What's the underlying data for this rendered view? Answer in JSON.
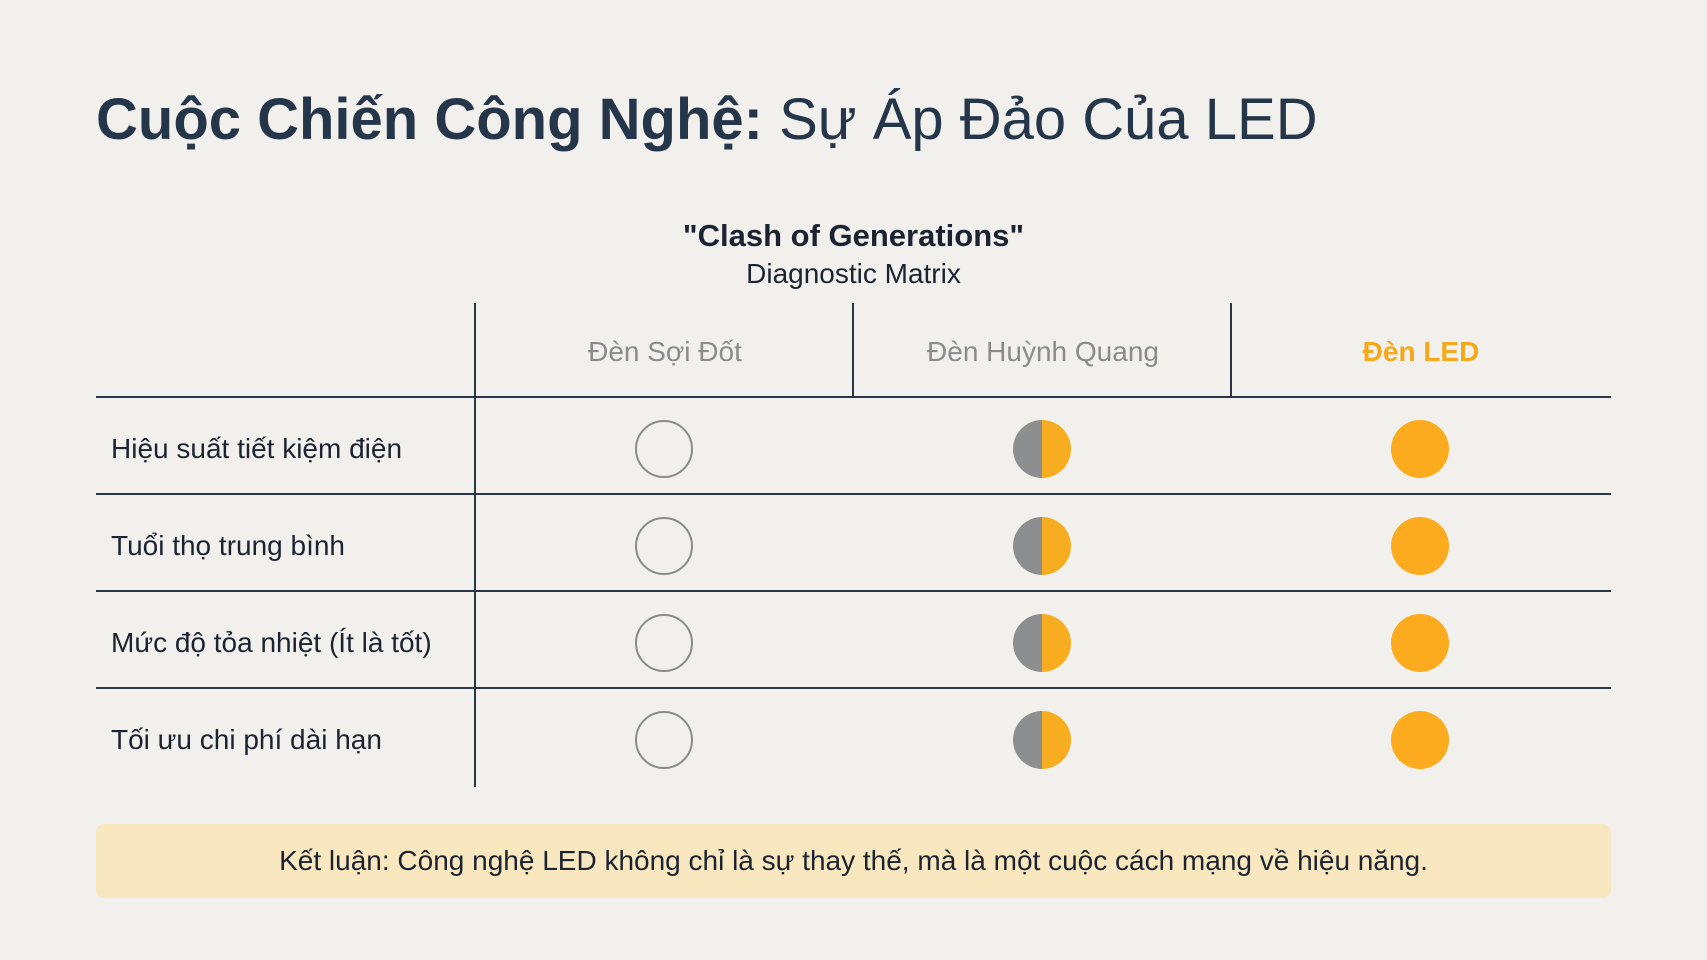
{
  "title": {
    "bold_part": "Cuộc Chiến Công Nghệ:",
    "light_part": " Sự Áp Đảo Của LED"
  },
  "matrix": {
    "title": "\"Clash of Generations\"",
    "subtitle": "Diagnostic Matrix",
    "columns": [
      "Đèn Sợi Đốt",
      "Đèn Huỳnh Quang",
      "Đèn LED"
    ],
    "rows": [
      {
        "label": "Hiệu suất tiết kiệm điện",
        "ratings": [
          0,
          0.5,
          1
        ]
      },
      {
        "label": "Tuổi thọ trung bình",
        "ratings": [
          0,
          0.5,
          1
        ]
      },
      {
        "label": "Mức độ tỏa nhiệt (Ít là tốt)",
        "ratings": [
          0,
          0.5,
          1
        ]
      },
      {
        "label": "Tối ưu chi phí dài hạn",
        "ratings": [
          0,
          0.5,
          1
        ]
      }
    ]
  },
  "conclusion": "Kết luận: Công nghệ LED không chỉ là sự thay thế, mà là một cuộc cách mạng về hiệu năng.",
  "colors": {
    "background": "#f2f0ec",
    "accent": "#f7ad1f",
    "neutral": "#8c8e90",
    "conclusion_bg": "#f8e7bf"
  },
  "icons": {
    "empty": "empty-circle-icon",
    "half": "half-filled-circle-icon",
    "full": "filled-circle-icon"
  }
}
